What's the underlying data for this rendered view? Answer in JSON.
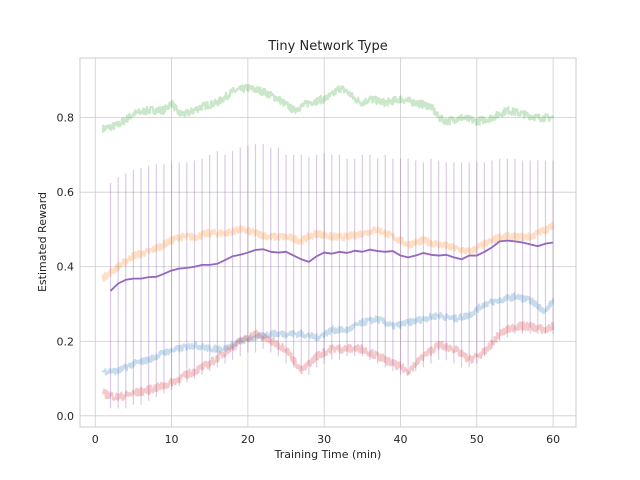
{
  "chart_data": {
    "type": "line",
    "title": "Tiny Network Type",
    "xlabel": "Training Time (min)",
    "ylabel": "Estimated Reward",
    "xlim": [
      -2,
      63
    ],
    "ylim": [
      -0.03,
      0.96
    ],
    "xticks": [
      0,
      10,
      20,
      30,
      40,
      50,
      60
    ],
    "yticks": [
      0.0,
      0.2,
      0.4,
      0.6,
      0.8
    ],
    "ytick_labels": [
      "0.0",
      "0.2",
      "0.4",
      "0.6",
      "0.8"
    ],
    "grid": true,
    "series": [
      {
        "color": "#2ca02c",
        "alpha": 0.25,
        "noise": 0.01,
        "x": [
          1,
          3,
          5,
          7,
          9,
          10,
          11,
          12,
          14,
          16,
          18,
          20,
          22,
          24,
          26,
          28,
          30,
          31,
          32,
          33,
          34,
          35,
          36,
          38,
          40,
          42,
          44,
          45,
          46,
          48,
          50,
          52,
          54,
          56,
          58,
          60
        ],
        "values": [
          0.77,
          0.78,
          0.81,
          0.82,
          0.82,
          0.84,
          0.81,
          0.81,
          0.83,
          0.84,
          0.87,
          0.88,
          0.87,
          0.85,
          0.82,
          0.84,
          0.85,
          0.86,
          0.88,
          0.87,
          0.85,
          0.84,
          0.85,
          0.84,
          0.85,
          0.84,
          0.83,
          0.8,
          0.79,
          0.8,
          0.79,
          0.8,
          0.82,
          0.81,
          0.8,
          0.8
        ]
      },
      {
        "color": "#ff7f0e",
        "alpha": 0.25,
        "noise": 0.01,
        "x": [
          1,
          3,
          5,
          7,
          9,
          11,
          13,
          15,
          17,
          19,
          21,
          23,
          25,
          27,
          29,
          31,
          33,
          35,
          37,
          39,
          41,
          43,
          45,
          47,
          49,
          51,
          53,
          55,
          57,
          59,
          60
        ],
        "values": [
          0.37,
          0.4,
          0.43,
          0.44,
          0.46,
          0.48,
          0.48,
          0.49,
          0.49,
          0.5,
          0.49,
          0.48,
          0.48,
          0.47,
          0.49,
          0.48,
          0.48,
          0.49,
          0.5,
          0.48,
          0.46,
          0.47,
          0.46,
          0.45,
          0.44,
          0.46,
          0.48,
          0.48,
          0.48,
          0.5,
          0.51
        ]
      },
      {
        "color": "#1f77b4",
        "alpha": 0.25,
        "noise": 0.009,
        "x": [
          1,
          3,
          5,
          7,
          9,
          11,
          13,
          15,
          17,
          19,
          21,
          23,
          25,
          27,
          29,
          31,
          33,
          35,
          37,
          39,
          41,
          43,
          45,
          47,
          49,
          51,
          53,
          55,
          57,
          59,
          60
        ],
        "values": [
          0.12,
          0.12,
          0.14,
          0.15,
          0.17,
          0.18,
          0.19,
          0.18,
          0.18,
          0.2,
          0.21,
          0.22,
          0.22,
          0.22,
          0.21,
          0.23,
          0.23,
          0.25,
          0.26,
          0.24,
          0.25,
          0.26,
          0.27,
          0.26,
          0.27,
          0.3,
          0.31,
          0.32,
          0.31,
          0.28,
          0.31
        ]
      },
      {
        "color": "#d62728",
        "alpha": 0.25,
        "noise": 0.011,
        "x": [
          1,
          3,
          5,
          7,
          9,
          11,
          13,
          15,
          17,
          19,
          21,
          22,
          23,
          25,
          27,
          29,
          31,
          33,
          35,
          37,
          39,
          41,
          43,
          45,
          47,
          49,
          51,
          53,
          55,
          57,
          59,
          60
        ],
        "values": [
          0.06,
          0.05,
          0.06,
          0.07,
          0.08,
          0.1,
          0.12,
          0.14,
          0.17,
          0.2,
          0.22,
          0.21,
          0.2,
          0.18,
          0.12,
          0.16,
          0.18,
          0.18,
          0.18,
          0.16,
          0.14,
          0.12,
          0.16,
          0.19,
          0.18,
          0.15,
          0.17,
          0.22,
          0.24,
          0.24,
          0.23,
          0.24
        ]
      },
      {
        "color": "#9467bd",
        "alpha": 1.0,
        "noise": 0,
        "x": [
          2,
          3,
          4,
          5,
          6,
          7,
          8,
          9,
          10,
          11,
          12,
          13,
          14,
          15,
          16,
          17,
          18,
          19,
          20,
          21,
          22,
          23,
          24,
          25,
          26,
          27,
          28,
          29,
          30,
          31,
          32,
          33,
          34,
          35,
          36,
          37,
          38,
          39,
          40,
          41,
          42,
          43,
          44,
          45,
          46,
          47,
          48,
          49,
          50,
          51,
          52,
          53,
          54,
          55,
          56,
          57,
          58,
          59,
          60
        ],
        "values": [
          0.335,
          0.355,
          0.365,
          0.368,
          0.368,
          0.372,
          0.373,
          0.381,
          0.39,
          0.395,
          0.397,
          0.4,
          0.405,
          0.405,
          0.408,
          0.418,
          0.428,
          0.432,
          0.438,
          0.445,
          0.447,
          0.44,
          0.438,
          0.44,
          0.43,
          0.42,
          0.413,
          0.428,
          0.438,
          0.435,
          0.44,
          0.437,
          0.443,
          0.44,
          0.446,
          0.442,
          0.44,
          0.442,
          0.43,
          0.425,
          0.43,
          0.437,
          0.432,
          0.43,
          0.432,
          0.425,
          0.42,
          0.43,
          0.43,
          0.44,
          0.452,
          0.468,
          0.47,
          0.468,
          0.465,
          0.46,
          0.455,
          0.462,
          0.465
        ],
        "errbar_upper": [
          0.625,
          0.64,
          0.65,
          0.66,
          0.665,
          0.67,
          0.675,
          0.675,
          0.68,
          0.68,
          0.68,
          0.685,
          0.69,
          0.7,
          0.71,
          0.7,
          0.71,
          0.72,
          0.725,
          0.73,
          0.73,
          0.72,
          0.72,
          0.7,
          0.7,
          0.7,
          0.695,
          0.7,
          0.705,
          0.7,
          0.7,
          0.69,
          0.69,
          0.7,
          0.7,
          0.69,
          0.7,
          0.69,
          0.69,
          0.69,
          0.685,
          0.68,
          0.69,
          0.685,
          0.68,
          0.68,
          0.68,
          0.68,
          0.68,
          0.68,
          0.685,
          0.69,
          0.69,
          0.69,
          0.685,
          0.685,
          0.685,
          0.685,
          0.685
        ],
        "errbar_lower": [
          0.02,
          0.02,
          0.02,
          0.03,
          0.03,
          0.04,
          0.05,
          0.06,
          0.07,
          0.08,
          0.09,
          0.1,
          0.11,
          0.12,
          0.13,
          0.14,
          0.15,
          0.16,
          0.17,
          0.17,
          0.18,
          0.17,
          0.16,
          0.14,
          0.13,
          0.12,
          0.11,
          0.13,
          0.14,
          0.15,
          0.15,
          0.16,
          0.16,
          0.16,
          0.15,
          0.14,
          0.13,
          0.12,
          0.11,
          0.11,
          0.12,
          0.13,
          0.14,
          0.15,
          0.15,
          0.14,
          0.13,
          0.13,
          0.14,
          0.16,
          0.18,
          0.2,
          0.21,
          0.22,
          0.22,
          0.22,
          0.22,
          0.22,
          0.22
        ]
      }
    ]
  }
}
